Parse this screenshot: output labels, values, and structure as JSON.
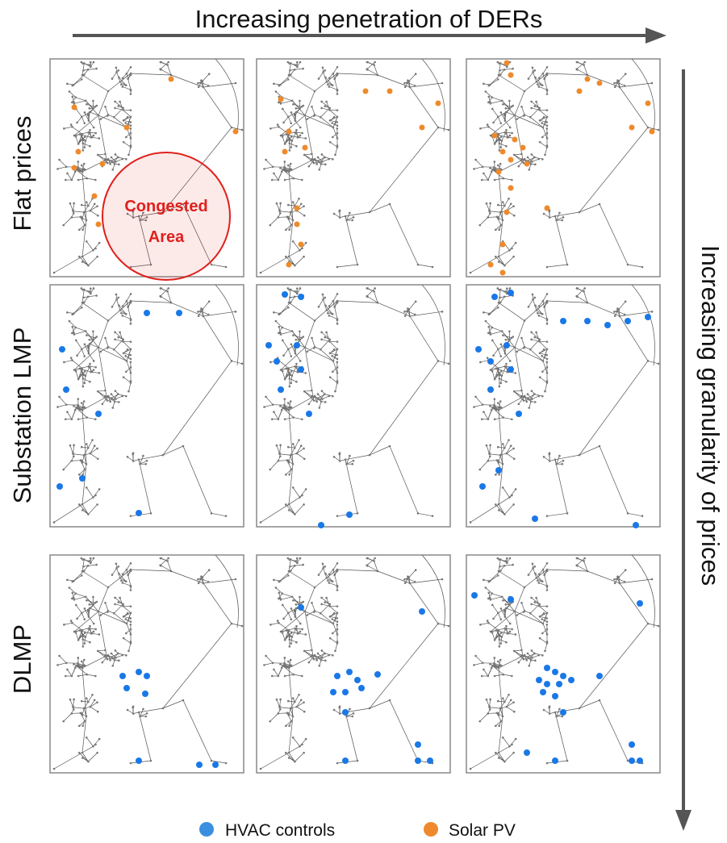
{
  "top_axis_label": "Increasing penetration of DERs",
  "right_axis_label": "Increasing granularity of prices",
  "rows": [
    {
      "label": "Flat prices",
      "der_type": "solar"
    },
    {
      "label": "Substation LMP",
      "der_type": "hvac"
    },
    {
      "label": "DLMP",
      "der_type": "hvac"
    }
  ],
  "columns": [
    "low",
    "medium",
    "high"
  ],
  "callout": {
    "line1": "Congested",
    "line2": "Area"
  },
  "legend": [
    {
      "label": "HVAC controls",
      "color": "#3b8fe0"
    },
    {
      "label": "Solar PV",
      "color": "#ee8a2c"
    }
  ],
  "colors": {
    "hvac": "#1a78e6",
    "solar": "#ee8a2c",
    "network": "#555555",
    "congested": "#e0201c"
  }
}
